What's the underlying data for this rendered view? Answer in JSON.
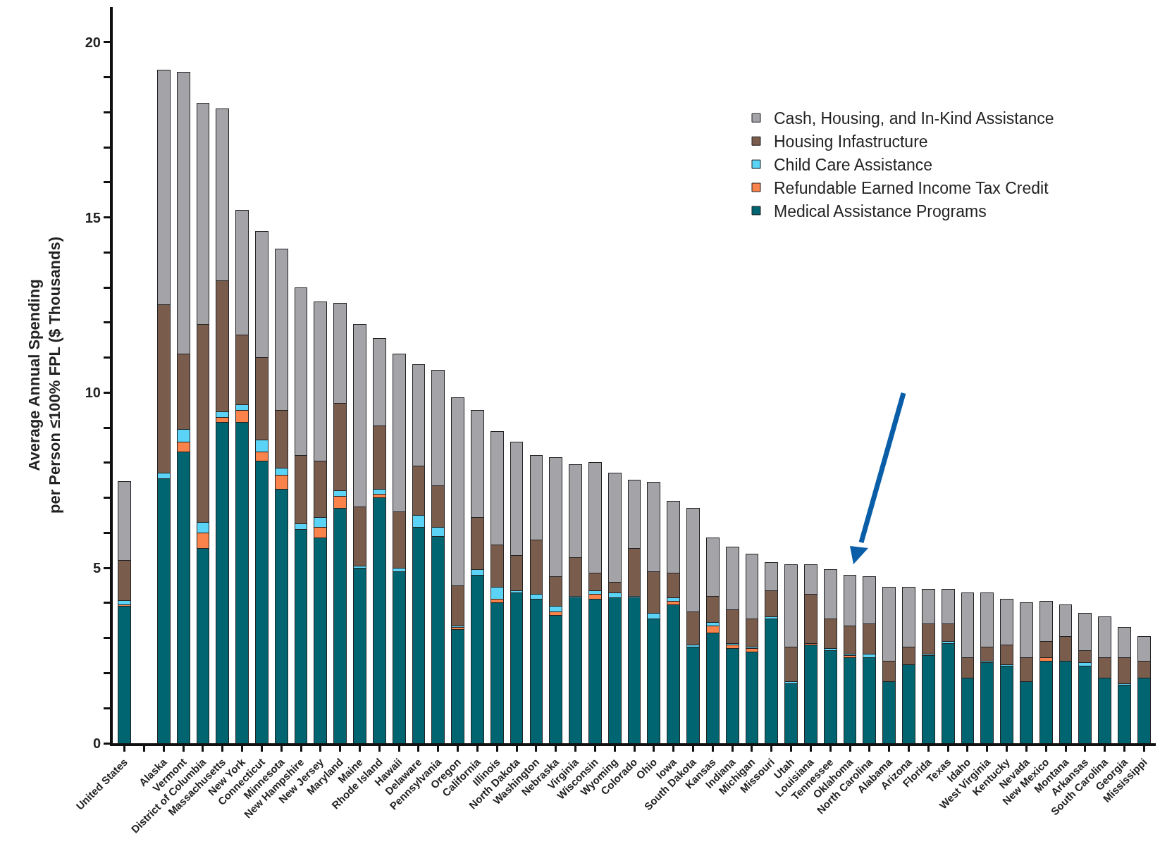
{
  "chart_data": {
    "type": "bar",
    "stacked": true,
    "ylabel": "Average Annual Spending\nper Person ≤100% FPL ($ Thousands)",
    "categories": [
      "United States",
      null,
      "Alaska",
      "Vermont",
      "District of Columbia",
      "Massachusetts",
      "New York",
      "Connecticut",
      "Minnesota",
      "New Hampshire",
      "New Jersey",
      "Maryland",
      "Maine",
      "Rhode Island",
      "Hawaii",
      "Delaware",
      "Pennsylvania",
      "Oregon",
      "California",
      "Illinois",
      "North Dakota",
      "Washington",
      "Nebraska",
      "Virginia",
      "Wisconsin",
      "Wyoming",
      "Colorado",
      "Ohio",
      "Iowa",
      "South Dakota",
      "Kansas",
      "Indiana",
      "Michigan",
      "Missouri",
      "Utah",
      "Louisiana",
      "Tennessee",
      "Oklahoma",
      "North Carolina",
      "Alabama",
      "Arizona",
      "Florida",
      "Texas",
      "Idaho",
      "West Virginia",
      "Kentucky",
      "Nevada",
      "New Mexico",
      "Montana",
      "Arkansas",
      "South Carolina",
      "Georgia",
      "Mississippi"
    ],
    "series": [
      {
        "name": "Medical Assistance Programs",
        "color": "#006570",
        "values": [
          3.9,
          null,
          7.55,
          8.3,
          5.55,
          9.15,
          9.15,
          8.05,
          7.25,
          6.1,
          5.85,
          6.7,
          5.0,
          7.0,
          4.9,
          6.15,
          5.9,
          3.25,
          4.8,
          4.0,
          4.3,
          4.1,
          3.65,
          4.15,
          4.1,
          4.15,
          4.15,
          3.55,
          3.95,
          2.75,
          3.15,
          2.7,
          2.6,
          3.55,
          1.7,
          2.8,
          2.65,
          2.45,
          2.45,
          1.75,
          2.25,
          2.5,
          2.85,
          1.85,
          2.3,
          2.2,
          1.75,
          2.35,
          2.35,
          2.2,
          1.85,
          1.65,
          1.85
        ]
      },
      {
        "name": "Refundable Earned Income Tax Credit",
        "color": "#f9834a",
        "values": [
          0.05,
          null,
          0,
          0.3,
          0.45,
          0.15,
          0.35,
          0.25,
          0.4,
          0,
          0.3,
          0.35,
          0,
          0.1,
          0,
          0,
          0,
          0.05,
          0,
          0.1,
          0,
          0,
          0.1,
          0,
          0.15,
          0,
          0,
          0,
          0.1,
          0,
          0.2,
          0.1,
          0.1,
          0,
          0,
          0.05,
          0,
          0.05,
          0,
          0,
          0,
          0,
          0,
          0,
          0,
          0,
          0,
          0.1,
          0,
          0,
          0,
          0,
          0
        ]
      },
      {
        "name": "Child Care Assistance",
        "color": "#5bd3f6",
        "values": [
          0.12,
          null,
          0.15,
          0.35,
          0.3,
          0.15,
          0.15,
          0.35,
          0.2,
          0.15,
          0.3,
          0.15,
          0.05,
          0.15,
          0.1,
          0.35,
          0.25,
          0.05,
          0.15,
          0.35,
          0.05,
          0.15,
          0.15,
          0.05,
          0.1,
          0.15,
          0.05,
          0.15,
          0.1,
          0.05,
          0.1,
          0.05,
          0.05,
          0.05,
          0.05,
          0,
          0.05,
          0.05,
          0.1,
          0,
          0,
          0.05,
          0.05,
          0,
          0.05,
          0.05,
          0,
          0,
          0,
          0.1,
          0,
          0.05,
          0
        ]
      },
      {
        "name": "Housing Infastructure",
        "color": "#7a5c4c",
        "values": [
          1.15,
          null,
          4.8,
          2.15,
          5.65,
          3.75,
          2.0,
          2.35,
          1.65,
          1.95,
          1.6,
          2.5,
          1.7,
          1.8,
          1.6,
          1.4,
          1.2,
          1.15,
          1.5,
          1.2,
          1.0,
          1.55,
          0.85,
          1.1,
          0.5,
          0.3,
          1.35,
          1.2,
          0.7,
          0.95,
          0.75,
          0.95,
          0.8,
          0.75,
          1.0,
          1.4,
          0.85,
          0.8,
          0.85,
          0.6,
          0.5,
          0.85,
          0.5,
          0.6,
          0.4,
          0.55,
          0.7,
          0.45,
          0.7,
          0.35,
          0.6,
          0.75,
          0.5
        ]
      },
      {
        "name": "Cash, Housing, and In-Kind Assistance",
        "color": "#a4a3a8",
        "values": [
          2.25,
          null,
          6.7,
          8.05,
          6.3,
          4.9,
          3.55,
          3.6,
          4.6,
          4.8,
          4.55,
          2.85,
          5.2,
          2.5,
          4.5,
          2.9,
          3.3,
          5.35,
          3.05,
          3.25,
          3.25,
          2.4,
          3.4,
          2.65,
          3.15,
          3.1,
          1.95,
          2.55,
          2.05,
          2.95,
          1.65,
          1.8,
          1.85,
          0.8,
          2.35,
          0.85,
          1.4,
          1.45,
          1.35,
          2.1,
          1.7,
          1.0,
          1.0,
          1.85,
          1.55,
          1.3,
          1.55,
          1.15,
          0.9,
          1.05,
          1.15,
          0.85,
          0.7
        ]
      }
    ],
    "ylim": [
      0,
      21
    ],
    "yticks": [
      0,
      {
        "value": 1,
        "label": null
      },
      {
        "value": 2,
        "label": null
      },
      {
        "value": 3,
        "label": null
      },
      {
        "value": 4,
        "label": null
      },
      5,
      {
        "value": 6,
        "label": null
      },
      {
        "value": 7,
        "label": null
      },
      {
        "value": 8,
        "label": null
      },
      {
        "value": 9,
        "label": null
      },
      10,
      {
        "value": 11,
        "label": null
      },
      {
        "value": 12,
        "label": null
      },
      {
        "value": 13,
        "label": null
      },
      {
        "value": 14,
        "label": null
      },
      15,
      {
        "value": 16,
        "label": null
      },
      {
        "value": 17,
        "label": null
      },
      {
        "value": 18,
        "label": null
      },
      {
        "value": 19,
        "label": null
      },
      20
    ],
    "grid": false,
    "legend": "top right"
  }
}
